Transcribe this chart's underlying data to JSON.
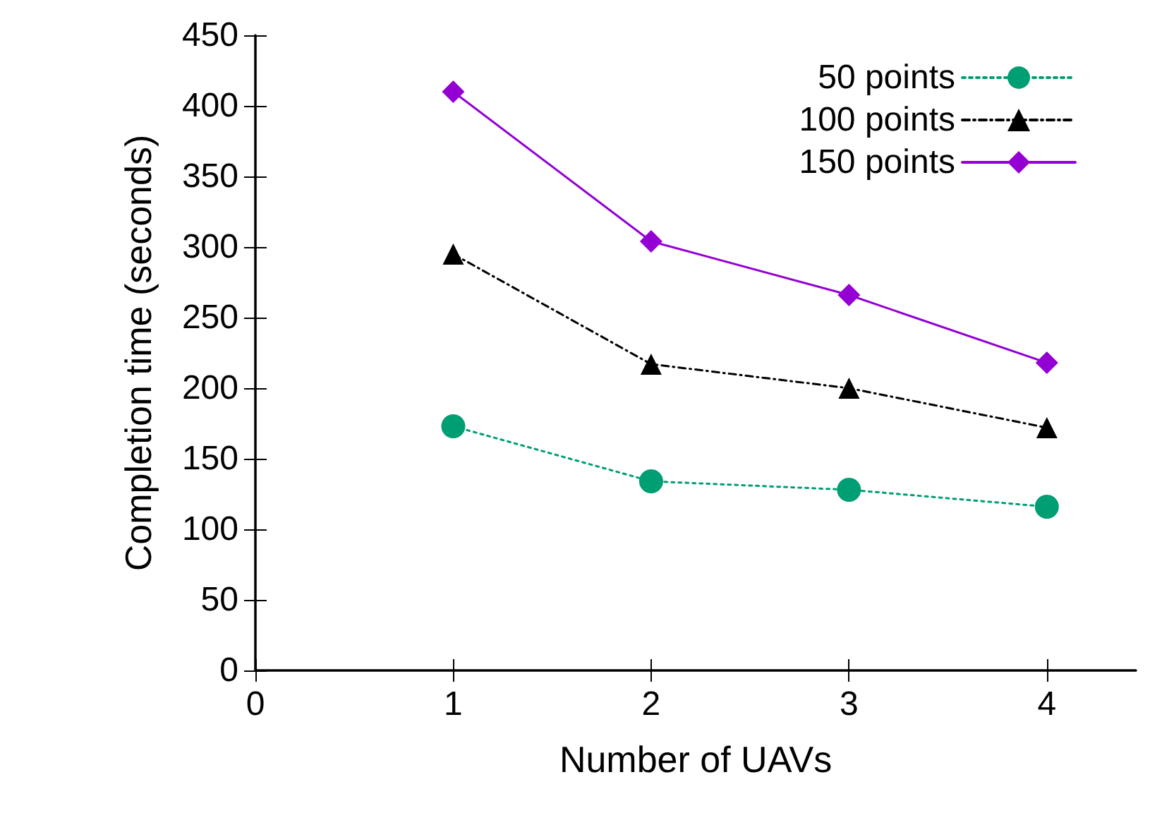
{
  "chart_data": {
    "type": "line",
    "xlabel": "Number of UAVs",
    "ylabel": "Completion time (seconds)",
    "x": [
      1,
      2,
      3,
      4
    ],
    "xlim": [
      0,
      4.45
    ],
    "xticks": [
      0,
      1,
      2,
      3,
      4
    ],
    "ylim": [
      0,
      450
    ],
    "yticks": [
      0,
      50,
      100,
      150,
      200,
      250,
      300,
      350,
      400,
      450
    ],
    "grid": false,
    "legend": "top right",
    "series": [
      {
        "name": "50 points",
        "color": "#009e73",
        "values": [
          173,
          134,
          128,
          116
        ],
        "marker": "circle",
        "line_style": "dotted"
      },
      {
        "name": "100 points",
        "color": "#000000",
        "values": [
          295,
          217,
          200,
          172
        ],
        "marker": "triangle",
        "line_style": "dashed"
      },
      {
        "name": "150 points",
        "color": "#9400d3",
        "values": [
          410,
          304,
          266,
          218
        ],
        "marker": "diamond",
        "line_style": "solid"
      }
    ]
  }
}
